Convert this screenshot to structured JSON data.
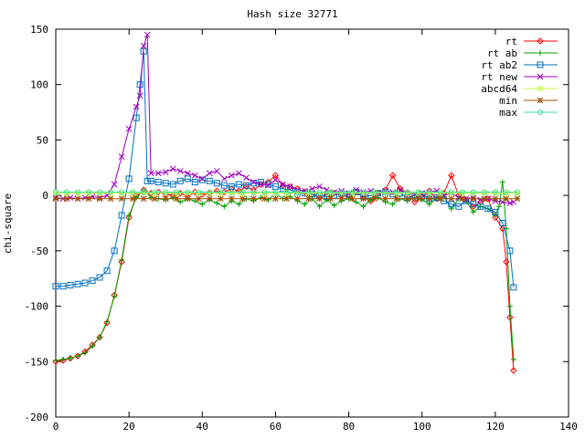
{
  "chart_data": {
    "type": "line",
    "title": "Hash size 32771",
    "xlabel": "",
    "ylabel": "chi-square",
    "xlim": [
      0,
      140
    ],
    "ylim": [
      -200,
      150
    ],
    "xticks": [
      0,
      20,
      40,
      60,
      80,
      100,
      120,
      140
    ],
    "yticks": [
      -200,
      -150,
      -100,
      -50,
      0,
      50,
      100,
      150
    ],
    "grid": false,
    "legend_position": "top-right",
    "series": [
      {
        "name": "rt",
        "color": "#ff0000",
        "marker": "diamond",
        "points": [
          [
            0,
            -150
          ],
          [
            2,
            -149
          ],
          [
            4,
            -147
          ],
          [
            6,
            -145
          ],
          [
            8,
            -141
          ],
          [
            10,
            -135
          ],
          [
            12,
            -128
          ],
          [
            14,
            -115
          ],
          [
            16,
            -90
          ],
          [
            18,
            -60
          ],
          [
            20,
            -20
          ],
          [
            22,
            0
          ],
          [
            24,
            5
          ],
          [
            26,
            2
          ],
          [
            28,
            3
          ],
          [
            30,
            1
          ],
          [
            32,
            0
          ],
          [
            34,
            2
          ],
          [
            36,
            -1
          ],
          [
            38,
            3
          ],
          [
            40,
            1
          ],
          [
            42,
            2
          ],
          [
            44,
            4
          ],
          [
            46,
            3
          ],
          [
            48,
            6
          ],
          [
            50,
            4
          ],
          [
            52,
            8
          ],
          [
            54,
            5
          ],
          [
            56,
            10
          ],
          [
            58,
            12
          ],
          [
            60,
            18
          ],
          [
            62,
            9
          ],
          [
            64,
            8
          ],
          [
            66,
            6
          ],
          [
            68,
            3
          ],
          [
            70,
            1
          ],
          [
            72,
            -2
          ],
          [
            74,
            1
          ],
          [
            76,
            2
          ],
          [
            78,
            0
          ],
          [
            80,
            -1
          ],
          [
            82,
            3
          ],
          [
            84,
            -2
          ],
          [
            86,
            -5
          ],
          [
            88,
            2
          ],
          [
            90,
            5
          ],
          [
            92,
            18
          ],
          [
            94,
            6
          ],
          [
            96,
            2
          ],
          [
            98,
            -6
          ],
          [
            100,
            -2
          ],
          [
            102,
            4
          ],
          [
            104,
            -3
          ],
          [
            106,
            2
          ],
          [
            108,
            18
          ],
          [
            110,
            0
          ],
          [
            112,
            -4
          ],
          [
            114,
            -10
          ],
          [
            116,
            -6
          ],
          [
            118,
            -3
          ],
          [
            120,
            -20
          ],
          [
            122,
            -30
          ],
          [
            123,
            -60
          ],
          [
            124,
            -110
          ],
          [
            125,
            -158
          ]
        ]
      },
      {
        "name": "rt ab",
        "color": "#00a000",
        "marker": "plus",
        "points": [
          [
            0,
            -149
          ],
          [
            2,
            -148
          ],
          [
            4,
            -147
          ],
          [
            6,
            -145
          ],
          [
            8,
            -142
          ],
          [
            10,
            -136
          ],
          [
            12,
            -128
          ],
          [
            14,
            -114
          ],
          [
            16,
            -91
          ],
          [
            18,
            -58
          ],
          [
            20,
            -18
          ],
          [
            22,
            -2
          ],
          [
            24,
            5
          ],
          [
            26,
            -2
          ],
          [
            28,
            -3
          ],
          [
            30,
            -4
          ],
          [
            32,
            -2
          ],
          [
            34,
            -6
          ],
          [
            36,
            -3
          ],
          [
            38,
            -5
          ],
          [
            40,
            -8
          ],
          [
            42,
            -4
          ],
          [
            44,
            -7
          ],
          [
            46,
            -10
          ],
          [
            48,
            -5
          ],
          [
            50,
            -8
          ],
          [
            52,
            -3
          ],
          [
            54,
            -5
          ],
          [
            56,
            -2
          ],
          [
            58,
            -4
          ],
          [
            60,
            2
          ],
          [
            62,
            -3
          ],
          [
            64,
            -1
          ],
          [
            66,
            -5
          ],
          [
            68,
            -8
          ],
          [
            70,
            -3
          ],
          [
            72,
            -10
          ],
          [
            74,
            -4
          ],
          [
            76,
            -9
          ],
          [
            78,
            -5
          ],
          [
            80,
            -3
          ],
          [
            82,
            -6
          ],
          [
            84,
            -10
          ],
          [
            86,
            -4
          ],
          [
            88,
            -2
          ],
          [
            90,
            -6
          ],
          [
            92,
            -8
          ],
          [
            94,
            -3
          ],
          [
            96,
            -5
          ],
          [
            98,
            -2
          ],
          [
            100,
            -4
          ],
          [
            102,
            -8
          ],
          [
            104,
            -3
          ],
          [
            106,
            -1
          ],
          [
            108,
            -12
          ],
          [
            110,
            -3
          ],
          [
            112,
            -5
          ],
          [
            114,
            -15
          ],
          [
            116,
            -10
          ],
          [
            118,
            -12
          ],
          [
            120,
            -18
          ],
          [
            121,
            -10
          ],
          [
            122,
            12
          ],
          [
            123,
            -30
          ],
          [
            124,
            -100
          ],
          [
            125,
            -148
          ]
        ]
      },
      {
        "name": "rt ab2",
        "color": "#0070c0",
        "marker": "square",
        "points": [
          [
            0,
            -82
          ],
          [
            2,
            -82
          ],
          [
            4,
            -81
          ],
          [
            6,
            -80
          ],
          [
            8,
            -79
          ],
          [
            10,
            -77
          ],
          [
            12,
            -74
          ],
          [
            14,
            -68
          ],
          [
            16,
            -50
          ],
          [
            18,
            -18
          ],
          [
            20,
            15
          ],
          [
            22,
            70
          ],
          [
            23,
            100
          ],
          [
            24,
            130
          ],
          [
            25,
            13
          ],
          [
            26,
            13
          ],
          [
            28,
            12
          ],
          [
            30,
            11
          ],
          [
            32,
            10
          ],
          [
            34,
            13
          ],
          [
            36,
            15
          ],
          [
            38,
            12
          ],
          [
            40,
            14
          ],
          [
            42,
            13
          ],
          [
            44,
            11
          ],
          [
            46,
            9
          ],
          [
            48,
            8
          ],
          [
            50,
            10
          ],
          [
            52,
            9
          ],
          [
            54,
            11
          ],
          [
            56,
            12
          ],
          [
            58,
            10
          ],
          [
            60,
            8
          ],
          [
            62,
            6
          ],
          [
            64,
            5
          ],
          [
            66,
            3
          ],
          [
            68,
            2
          ],
          [
            70,
            1
          ],
          [
            72,
            0
          ],
          [
            74,
            -1
          ],
          [
            76,
            0
          ],
          [
            78,
            2
          ],
          [
            80,
            1
          ],
          [
            82,
            3
          ],
          [
            84,
            -1
          ],
          [
            86,
            0
          ],
          [
            88,
            2
          ],
          [
            90,
            3
          ],
          [
            92,
            1
          ],
          [
            94,
            2
          ],
          [
            96,
            -2
          ],
          [
            98,
            0
          ],
          [
            100,
            1
          ],
          [
            102,
            -3
          ],
          [
            104,
            -2
          ],
          [
            106,
            -5
          ],
          [
            108,
            -8
          ],
          [
            110,
            -10
          ],
          [
            112,
            -5
          ],
          [
            114,
            -8
          ],
          [
            116,
            -10
          ],
          [
            118,
            -12
          ],
          [
            120,
            -15
          ],
          [
            122,
            -25
          ],
          [
            124,
            -50
          ],
          [
            125,
            -83
          ]
        ]
      },
      {
        "name": "rt new",
        "color": "#a000c0",
        "marker": "cross",
        "points": [
          [
            0,
            -2
          ],
          [
            2,
            -3
          ],
          [
            4,
            -2
          ],
          [
            6,
            -3
          ],
          [
            8,
            -2
          ],
          [
            10,
            -1
          ],
          [
            12,
            -2
          ],
          [
            14,
            0
          ],
          [
            16,
            10
          ],
          [
            18,
            35
          ],
          [
            20,
            60
          ],
          [
            22,
            80
          ],
          [
            23,
            90
          ],
          [
            24,
            135
          ],
          [
            25,
            145
          ],
          [
            26,
            20
          ],
          [
            28,
            20
          ],
          [
            30,
            21
          ],
          [
            32,
            24
          ],
          [
            34,
            22
          ],
          [
            36,
            20
          ],
          [
            38,
            18
          ],
          [
            40,
            15
          ],
          [
            42,
            20
          ],
          [
            44,
            22
          ],
          [
            46,
            15
          ],
          [
            48,
            18
          ],
          [
            50,
            20
          ],
          [
            52,
            16
          ],
          [
            54,
            12
          ],
          [
            56,
            10
          ],
          [
            58,
            9
          ],
          [
            60,
            14
          ],
          [
            62,
            10
          ],
          [
            64,
            8
          ],
          [
            66,
            5
          ],
          [
            68,
            4
          ],
          [
            70,
            6
          ],
          [
            72,
            8
          ],
          [
            74,
            5
          ],
          [
            76,
            3
          ],
          [
            78,
            4
          ],
          [
            80,
            2
          ],
          [
            82,
            5
          ],
          [
            84,
            3
          ],
          [
            86,
            4
          ],
          [
            88,
            2
          ],
          [
            90,
            4
          ],
          [
            92,
            3
          ],
          [
            94,
            5
          ],
          [
            96,
            2
          ],
          [
            98,
            1
          ],
          [
            100,
            2
          ],
          [
            102,
            3
          ],
          [
            104,
            4
          ],
          [
            106,
            0
          ],
          [
            108,
            2
          ],
          [
            110,
            -2
          ],
          [
            112,
            -3
          ],
          [
            114,
            -2
          ],
          [
            116,
            -4
          ],
          [
            118,
            -3
          ],
          [
            120,
            -5
          ],
          [
            122,
            -6
          ],
          [
            124,
            -7
          ],
          [
            125,
            -6
          ]
        ]
      },
      {
        "name": "abcd64",
        "color": "#c8ff40",
        "marker": "star",
        "points": [
          [
            0,
            2
          ],
          [
            126,
            2
          ]
        ]
      },
      {
        "name": "min",
        "color": "#a05000",
        "marker": "asterisk",
        "points": [
          [
            0,
            -3
          ],
          [
            126,
            -3
          ]
        ]
      },
      {
        "name": "max",
        "color": "#40e0a0",
        "marker": "circle",
        "points": [
          [
            0,
            3
          ],
          [
            126,
            3
          ]
        ]
      }
    ]
  }
}
